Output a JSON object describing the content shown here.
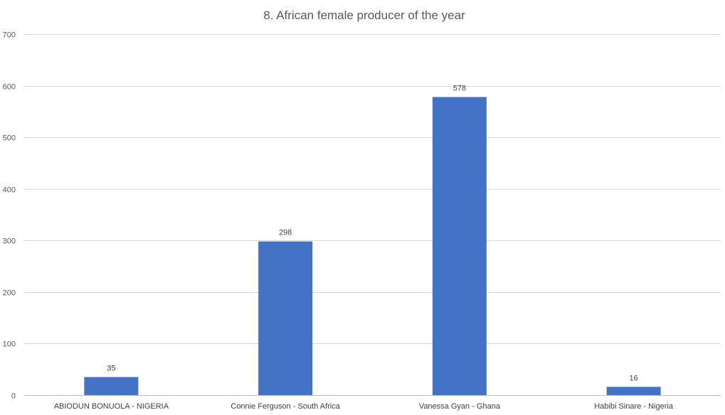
{
  "chart_data": {
    "type": "bar",
    "title": "8. African female producer of the year",
    "xlabel": "",
    "ylabel": "",
    "categories": [
      "ABIODUN BONUOLA - NIGERIA",
      "Connie Ferguson - South Africa",
      "Vanessa Gyan - Ghana",
      "Habibi Sinare - Nigeria"
    ],
    "values": [
      35,
      298,
      578,
      16
    ],
    "ylim": [
      0,
      700
    ],
    "yticks": [
      0,
      100,
      200,
      300,
      400,
      500,
      600,
      700
    ],
    "grid": true,
    "legend": "none",
    "data_labels": true,
    "bar_color": "#4472c4"
  }
}
